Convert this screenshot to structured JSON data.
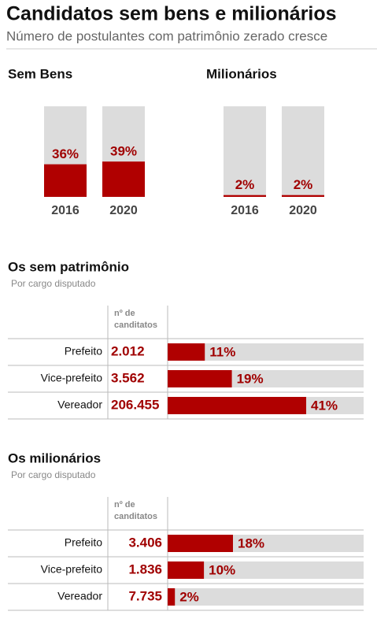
{
  "header": {
    "title": "Candidatos sem bens e milionários",
    "subtitle": "Número de postulantes com patrimônio zerado cresce"
  },
  "chart_data": [
    {
      "type": "column",
      "title": "Sem Bens",
      "categories": [
        "2016",
        "2020"
      ],
      "values": [
        36,
        39
      ],
      "value_labels": [
        "36%",
        "39%"
      ],
      "ylim": [
        0,
        100
      ],
      "color": "#b00000",
      "track_color": "#dcdcdc"
    },
    {
      "type": "column",
      "title": "Milionários",
      "categories": [
        "2016",
        "2020"
      ],
      "values": [
        2,
        2
      ],
      "value_labels": [
        "2%",
        "2%"
      ],
      "ylim": [
        0,
        100
      ],
      "color": "#b00000",
      "track_color": "#dcdcdc"
    },
    {
      "type": "tablebar",
      "title": "Os sem patrimônio",
      "subtitle": "Por cargo disputado",
      "column_header": [
        "nº de",
        "canditatos"
      ],
      "categories": [
        "Prefeito",
        "Vice-prefeito",
        "Vereador"
      ],
      "counts": [
        "2.012",
        "3.562",
        "206.455"
      ],
      "values": [
        11,
        19,
        41
      ],
      "value_labels": [
        "11%",
        "19%",
        "41%"
      ],
      "xlim": [
        0,
        58
      ],
      "color": "#b00000",
      "track_color": "#dcdcdc"
    },
    {
      "type": "tablebar",
      "title": "Os milionários",
      "subtitle": "Por cargo disputado",
      "column_header": [
        "nº de",
        "canditatos"
      ],
      "categories": [
        "Prefeito",
        "Vice-prefeito",
        "Vereador"
      ],
      "counts": [
        "3.406",
        "1.836",
        "7.735"
      ],
      "values": [
        18,
        10,
        2
      ],
      "value_labels": [
        "18%",
        "10%",
        "2%"
      ],
      "xlim": [
        0,
        54
      ],
      "color": "#b00000",
      "track_color": "#dcdcdc"
    }
  ]
}
